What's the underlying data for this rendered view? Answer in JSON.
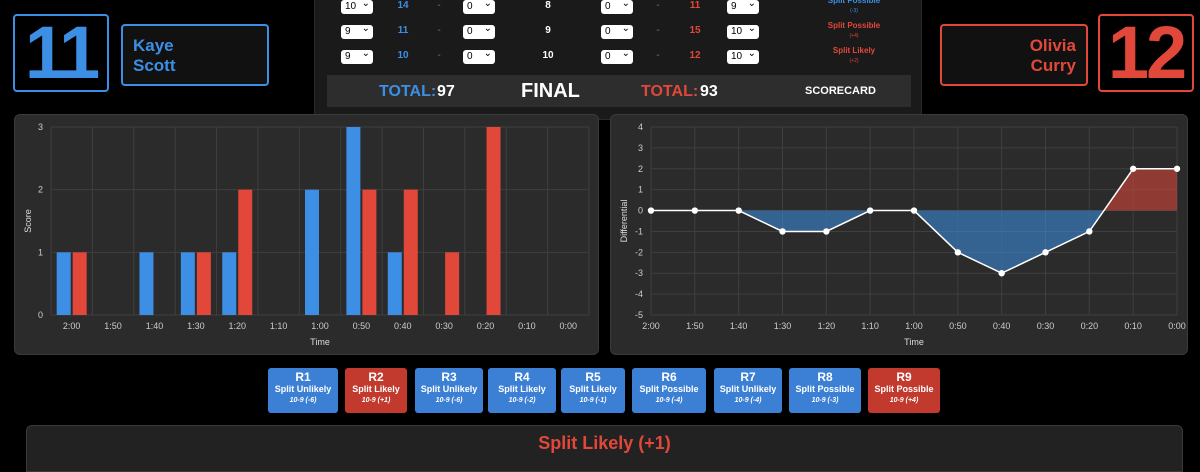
{
  "fighters": {
    "blue": {
      "score": "11",
      "first": "Kaye",
      "last": "Scott"
    },
    "red": {
      "score": "12",
      "first": "Olivia",
      "last": "Curry"
    }
  },
  "scorecard": {
    "rows": [
      {
        "blue_sel": "10",
        "blue_num": "14",
        "dash1": "-",
        "blue_ded": "0",
        "round_score": "8",
        "red_ded": "0",
        "dash2": "-",
        "red_num": "11",
        "red_sel": "9",
        "verdict": "Split Possible",
        "verdict_sub": "(-3)",
        "verdict_color": "#3d8fe6"
      },
      {
        "blue_sel": "9",
        "blue_num": "11",
        "dash1": "-",
        "blue_ded": "0",
        "round_score": "9",
        "red_ded": "0",
        "dash2": "-",
        "red_num": "15",
        "red_sel": "10",
        "verdict": "Split Possible",
        "verdict_sub": "(+4)",
        "verdict_color": "#e2483a"
      },
      {
        "blue_sel": "9",
        "blue_num": "10",
        "dash1": "-",
        "blue_ded": "0",
        "round_score": "10",
        "red_ded": "0",
        "dash2": "-",
        "red_num": "12",
        "red_sel": "10",
        "verdict": "Split Likely",
        "verdict_sub": "(+2)",
        "verdict_color": "#e2483a"
      }
    ],
    "total_label": "TOTAL:",
    "blue_total": "97",
    "status": "FINAL",
    "red_total": "93",
    "scorecard_label": "SCORECARD"
  },
  "chart_data": [
    {
      "type": "bar",
      "xlabel": "Time",
      "ylabel": "Score",
      "ylim": [
        0,
        3
      ],
      "yticks": [
        "0",
        "1",
        "2",
        "3"
      ],
      "categories": [
        "2:00",
        "1:50",
        "1:40",
        "1:30",
        "1:20",
        "1:10",
        "1:00",
        "0:50",
        "0:40",
        "0:30",
        "0:20",
        "0:10",
        "0:00"
      ],
      "series": [
        {
          "values": [
            1,
            0,
            1,
            1,
            1,
            0,
            2,
            3,
            1,
            0,
            0,
            0,
            0
          ],
          "color": "#3d8fe6"
        },
        {
          "values": [
            1,
            0,
            0,
            1,
            2,
            0,
            0,
            2,
            2,
            1,
            3,
            0,
            0
          ],
          "color": "#e2483a"
        }
      ]
    },
    {
      "type": "line",
      "xlabel": "Time",
      "ylabel": "Differential",
      "ylim": [
        -5,
        4
      ],
      "yticks": [
        "-5",
        "-4",
        "-3",
        "-2",
        "-1",
        "0",
        "1",
        "2",
        "3",
        "4"
      ],
      "categories": [
        "2:00",
        "1:50",
        "1:40",
        "1:30",
        "1:20",
        "1:10",
        "1:00",
        "0:50",
        "0:40",
        "0:30",
        "0:20",
        "0:10",
        "0:00"
      ],
      "values": [
        0,
        0,
        0,
        -1,
        -1,
        0,
        0,
        -2,
        -3,
        -2,
        -1,
        2,
        2
      ],
      "positive_fill": "#e2483a",
      "negative_fill": "#3d8fe6"
    }
  ],
  "rounds": [
    {
      "label": "R1",
      "verdict": "Split Unlikely",
      "score": "10-9 (-6)",
      "color": "blue"
    },
    {
      "label": "R2",
      "verdict": "Split Likely",
      "score": "10-9 (+1)",
      "color": "red"
    },
    {
      "label": "R3",
      "verdict": "Split Unlikely",
      "score": "10-9 (-6)",
      "color": "blue"
    },
    {
      "label": "R4",
      "verdict": "Split Likely",
      "score": "10-9 (-2)",
      "color": "blue"
    },
    {
      "label": "R5",
      "verdict": "Split Likely",
      "score": "10-9 (-1)",
      "color": "blue"
    },
    {
      "label": "R6",
      "verdict": "Split Possible",
      "score": "10-9 (-4)",
      "color": "blue"
    },
    {
      "label": "R7",
      "verdict": "Split Unlikely",
      "score": "10-9 (-4)",
      "color": "blue"
    },
    {
      "label": "R8",
      "verdict": "Split Possible",
      "score": "10-9 (-3)",
      "color": "blue"
    },
    {
      "label": "R9",
      "verdict": "Split Possible",
      "score": "10-9 (+4)",
      "color": "red"
    }
  ],
  "selected_verdict": "Split Likely (+1)"
}
